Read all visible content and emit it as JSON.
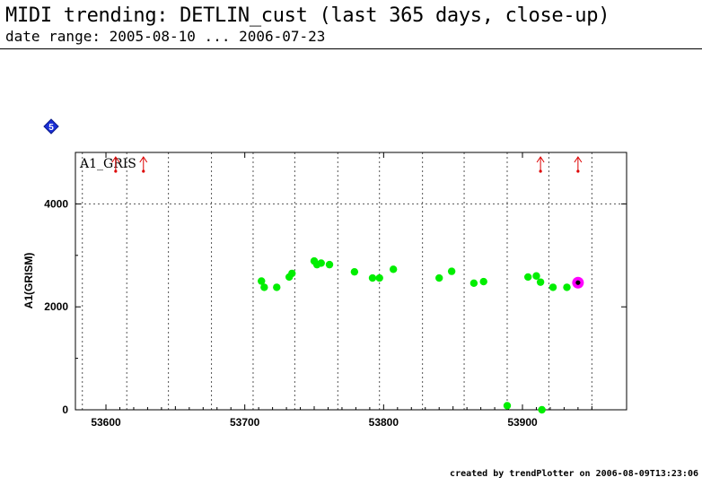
{
  "header": {
    "title": "MIDI trending: DETLIN_cust (last 365 days, close-up)",
    "subtitle": "date range: 2005-08-10 ... 2006-07-23"
  },
  "badge": {
    "label": "5",
    "color": "#1a2fd6"
  },
  "footer": {
    "text": "created by trendPlotter on 2006-08-09T13:23:06"
  },
  "chart_data": {
    "type": "scatter",
    "panel_label": "A1_GRIS",
    "ylabel": "A1(GRISM)",
    "xlabel": "",
    "xlim": [
      53578,
      53975
    ],
    "ylim": [
      0,
      5000
    ],
    "x_ticks": [
      53600,
      53700,
      53800,
      53900
    ],
    "y_ticks": [
      0,
      2000,
      4000
    ],
    "grid": "dotted vertical and horizontal lines",
    "vertical_grid_x": [
      53583,
      53615,
      53645,
      53676,
      53706,
      53736,
      53767,
      53797,
      53828,
      53858,
      53889,
      53919,
      53950
    ],
    "horizontal_grid_y": [
      4000
    ],
    "colors": {
      "points": "#00ee00",
      "highlight": "#ff00ff",
      "highlight_center": "#000000",
      "out_of_range_arrows": "#dd0000",
      "grid": "#555555"
    },
    "series": [
      {
        "values": [
          {
            "x": 53712,
            "y": 2500
          },
          {
            "x": 53714,
            "y": 2380
          },
          {
            "x": 53723,
            "y": 2380
          },
          {
            "x": 53732,
            "y": 2580
          },
          {
            "x": 53734,
            "y": 2650
          },
          {
            "x": 53750,
            "y": 2890
          },
          {
            "x": 53752,
            "y": 2820
          },
          {
            "x": 53755,
            "y": 2850
          },
          {
            "x": 53761,
            "y": 2820
          },
          {
            "x": 53779,
            "y": 2680
          },
          {
            "x": 53792,
            "y": 2560
          },
          {
            "x": 53797,
            "y": 2560
          },
          {
            "x": 53807,
            "y": 2730
          },
          {
            "x": 53840,
            "y": 2560
          },
          {
            "x": 53849,
            "y": 2690
          },
          {
            "x": 53865,
            "y": 2460
          },
          {
            "x": 53872,
            "y": 2490
          },
          {
            "x": 53889,
            "y": 80
          },
          {
            "x": 53904,
            "y": 2580
          },
          {
            "x": 53910,
            "y": 2600
          },
          {
            "x": 53913,
            "y": 2480
          },
          {
            "x": 53914,
            "y": 0
          },
          {
            "x": 53922,
            "y": 2380
          },
          {
            "x": 53932,
            "y": 2380
          }
        ]
      }
    ],
    "highlighted_point": {
      "x": 53940,
      "y": 2470
    },
    "out_of_range_markers_x": [
      53607,
      53627,
      53913,
      53940
    ]
  }
}
